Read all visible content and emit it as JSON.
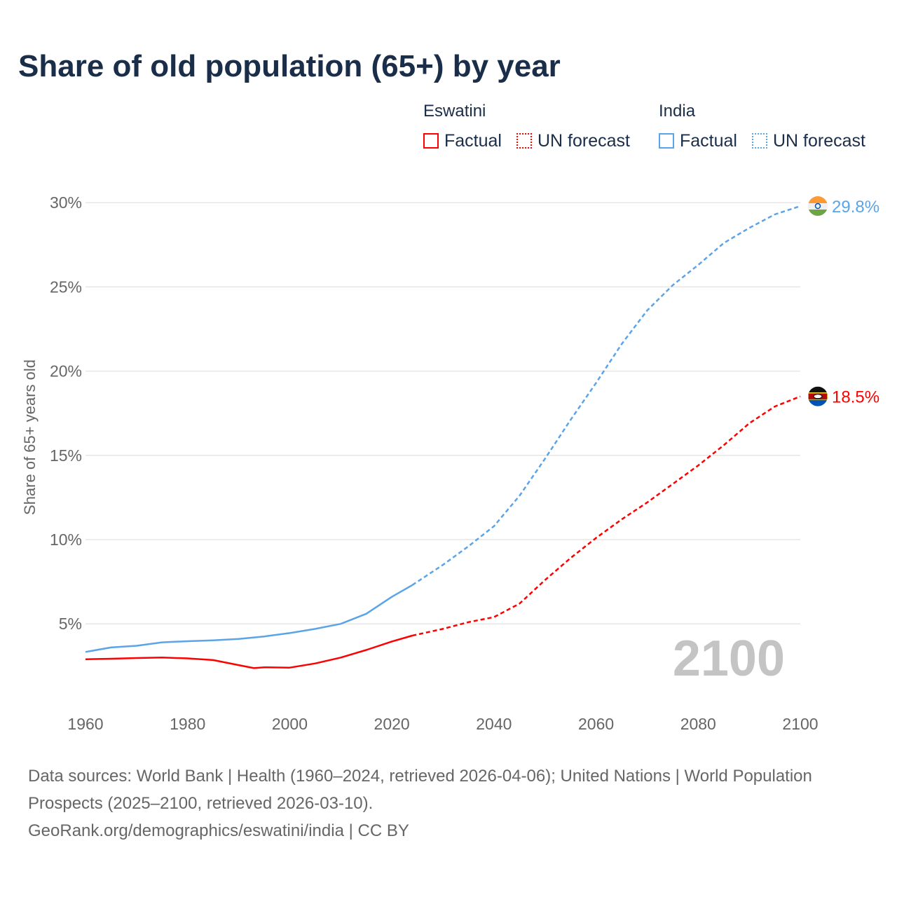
{
  "title": "Share of old population (65+) by year",
  "legend": {
    "groups": [
      {
        "name": "Eswatini",
        "color": "#ff0000",
        "items": [
          "Factual",
          "UN forecast"
        ]
      },
      {
        "name": "India",
        "color": "#5ba4e8",
        "items": [
          "Factual",
          "UN forecast"
        ]
      }
    ]
  },
  "chart_data": {
    "type": "line",
    "title": "Share of old population (65+) by year",
    "xlabel": "",
    "ylabel": "Share of 65+ years old",
    "xlim": [
      1960,
      2100
    ],
    "ylim": [
      0,
      30
    ],
    "x_ticks": [
      "1960",
      "1980",
      "2000",
      "2020",
      "2040",
      "2060",
      "2080",
      "2100"
    ],
    "y_ticks": [
      "5%",
      "10%",
      "15%",
      "20%",
      "25%",
      "30%"
    ],
    "y_tick_values": [
      5,
      10,
      15,
      20,
      25,
      30
    ],
    "grid": true,
    "year_watermark": "2100",
    "series": [
      {
        "name": "Eswatini",
        "color": "#ff0000",
        "end_label": "18.5%",
        "factual": {
          "x": [
            1960,
            1965,
            1970,
            1975,
            1980,
            1985,
            1990,
            1993,
            1995,
            2000,
            2005,
            2010,
            2015,
            2020,
            2024
          ],
          "y": [
            2.9,
            2.93,
            2.97,
            3.0,
            2.95,
            2.85,
            2.55,
            2.37,
            2.42,
            2.4,
            2.65,
            3.0,
            3.45,
            3.95,
            4.3
          ]
        },
        "forecast": {
          "x": [
            2024,
            2030,
            2035,
            2040,
            2045,
            2050,
            2055,
            2060,
            2065,
            2070,
            2075,
            2080,
            2085,
            2090,
            2095,
            2100
          ],
          "y": [
            4.3,
            4.7,
            5.1,
            5.4,
            6.2,
            7.6,
            8.9,
            10.1,
            11.2,
            12.2,
            13.3,
            14.4,
            15.6,
            16.9,
            17.9,
            18.5
          ]
        }
      },
      {
        "name": "India",
        "color": "#5ba4e8",
        "end_label": "29.8%",
        "factual": {
          "x": [
            1960,
            1965,
            1970,
            1975,
            1980,
            1985,
            1990,
            1995,
            2000,
            2005,
            2010,
            2015,
            2020,
            2024
          ],
          "y": [
            3.33,
            3.6,
            3.7,
            3.9,
            3.97,
            4.02,
            4.1,
            4.25,
            4.45,
            4.7,
            5.0,
            5.6,
            6.6,
            7.3
          ]
        },
        "forecast": {
          "x": [
            2024,
            2030,
            2035,
            2040,
            2045,
            2050,
            2055,
            2060,
            2065,
            2070,
            2075,
            2080,
            2085,
            2090,
            2095,
            2100
          ],
          "y": [
            7.3,
            8.5,
            9.6,
            10.8,
            12.6,
            14.8,
            17.1,
            19.3,
            21.6,
            23.6,
            25.1,
            26.3,
            27.6,
            28.5,
            29.3,
            29.8
          ]
        }
      }
    ]
  },
  "footer": {
    "sources": "Data sources: World Bank | Health (1960–2024, retrieved 2026-04-06); United Nations | World Population Prospects (2025–2100, retrieved 2026-03-10).",
    "link": "GeoRank.org/demographics/eswatini/india | CC BY"
  }
}
